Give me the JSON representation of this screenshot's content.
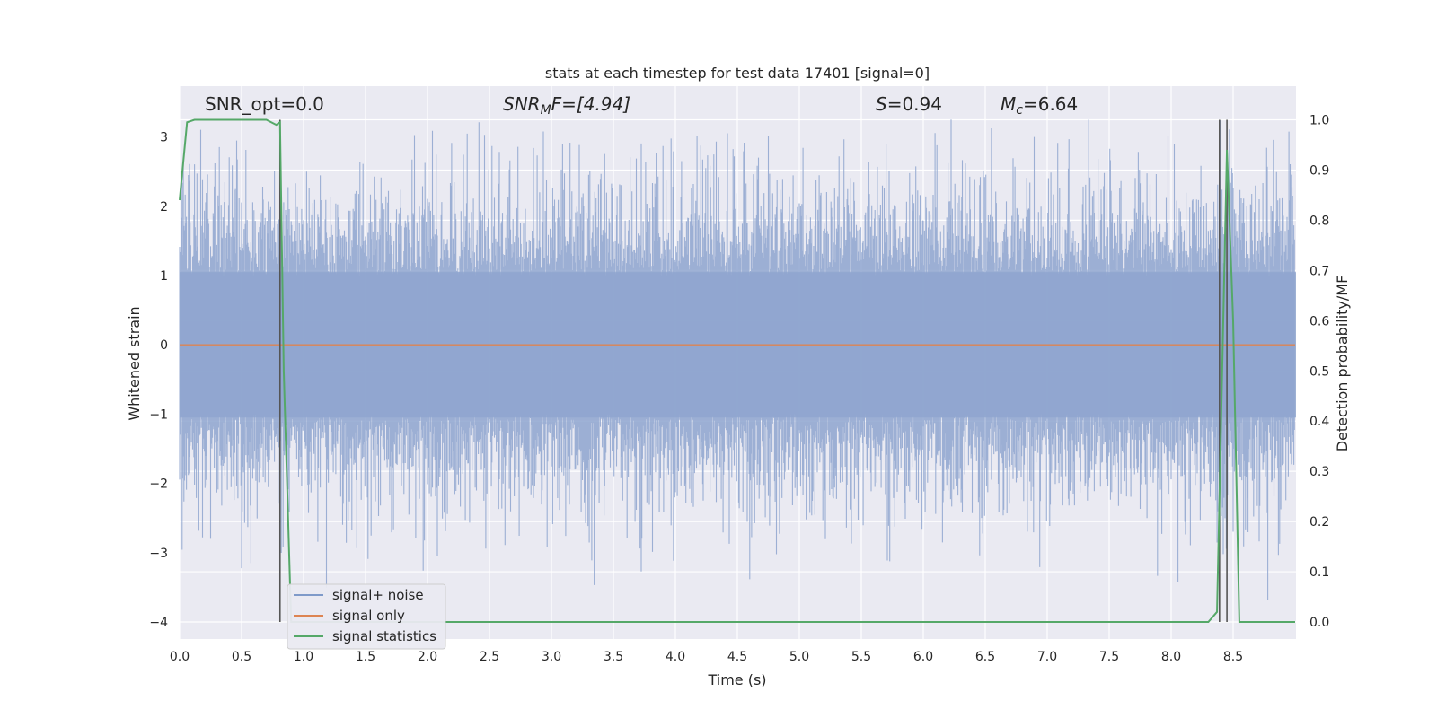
{
  "chart_data": {
    "type": "line",
    "title": "stats at each timestep for test data 17401 [signal=0]",
    "xlabel": "Time (s)",
    "ylabel_left": "Whitened strain",
    "ylabel_right": "Detection probability/MF",
    "xlim": [
      0.0,
      9.0
    ],
    "ylim_left": [
      -4.35,
      3.6
    ],
    "ylim_right": [
      -0.05,
      1.05
    ],
    "x_ticks": [
      "0.0",
      "0.5",
      "1.0",
      "1.5",
      "2.0",
      "2.5",
      "3.0",
      "3.5",
      "4.0",
      "4.5",
      "5.0",
      "5.5",
      "6.0",
      "6.5",
      "7.0",
      "7.5",
      "8.0",
      "8.5"
    ],
    "y_ticks_left": [
      "−4",
      "−3",
      "−2",
      "−1",
      "0",
      "1",
      "2",
      "3"
    ],
    "y_ticks_right": [
      "0.0",
      "0.1",
      "0.2",
      "0.3",
      "0.4",
      "0.5",
      "0.6",
      "0.7",
      "0.8",
      "0.9",
      "1.0"
    ],
    "grid": true,
    "legend_position": "lower-left",
    "annotations": {
      "snr_opt": "SNR_opt=0.0",
      "snr_mf_base": "SNR",
      "snr_mf_sub": "M",
      "snr_mf_rest": "F=[4.94]",
      "s_italic": "S",
      "s_rest": "=0.94",
      "mc_base": "M",
      "mc_sub": "c",
      "mc_rest": "=6.64"
    },
    "vertical_markers_s": [
      0.81,
      8.39,
      8.45
    ],
    "series": [
      {
        "name": "signal+ noise",
        "color": "#7f9ac9",
        "axis": "left",
        "description_values": {
          "sampling": "noise",
          "typical_range": [
            -1.5,
            1.5
          ],
          "extremes": [
            -4.0,
            3.25
          ]
        }
      },
      {
        "name": "signal only",
        "color": "#dd8452",
        "axis": "left",
        "x": [
          0.0,
          9.0
        ],
        "y": [
          0.0,
          0.0
        ]
      },
      {
        "name": "signal statistics",
        "color": "#55a868",
        "axis": "right",
        "x": [
          0.0,
          0.06,
          0.12,
          0.25,
          0.5,
          0.7,
          0.78,
          0.81,
          0.84,
          0.9,
          1.0,
          2.0,
          3.0,
          4.0,
          5.0,
          6.0,
          7.0,
          8.0,
          8.3,
          8.37,
          8.45,
          8.5,
          8.55,
          8.6,
          9.0
        ],
        "y": [
          0.84,
          0.995,
          1.0,
          1.0,
          1.0,
          1.0,
          0.99,
          0.995,
          0.5,
          0.0,
          0.0,
          0.0,
          0.0,
          0.0,
          0.0,
          0.0,
          0.0,
          0.0,
          0.0,
          0.02,
          0.94,
          0.6,
          0.0,
          0.0,
          0.0
        ]
      }
    ]
  }
}
